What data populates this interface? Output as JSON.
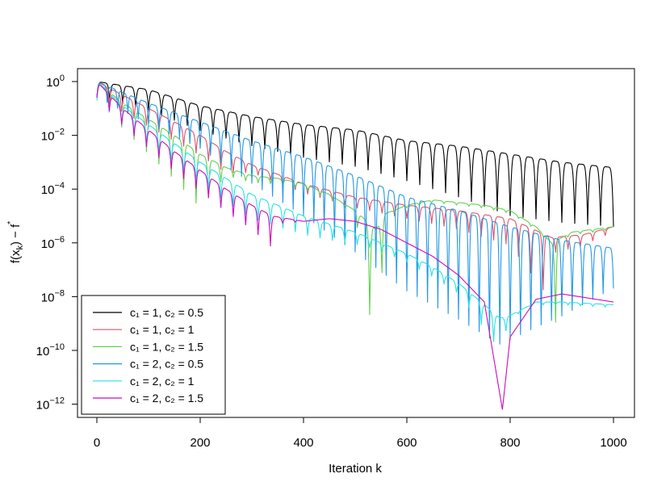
{
  "chart_data": {
    "type": "line",
    "title": "",
    "xlabel": "Iteration  k",
    "ylabel": "f(xₖ) − f*",
    "xlim": [
      0,
      1000
    ],
    "ylim_log10": [
      -12.3,
      0.5
    ],
    "y_scale": "log10",
    "x_ticks": [
      0,
      200,
      400,
      600,
      800,
      1000
    ],
    "y_ticks": [
      {
        "exp": 0,
        "label": "10^0"
      },
      {
        "exp": -2,
        "label": "10^-2"
      },
      {
        "exp": -4,
        "label": "10^-4"
      },
      {
        "exp": -6,
        "label": "10^-6"
      },
      {
        "exp": -8,
        "label": "10^-8"
      },
      {
        "exp": -10,
        "label": "10^-10"
      },
      {
        "exp": -12,
        "label": "10^-12"
      }
    ],
    "legend_position": "bottom-left",
    "series": [
      {
        "name": "c₁ = 1, c₂ = 0.5",
        "color": "#000000",
        "envelope": [
          [
            0,
            0
          ],
          [
            100,
            -0.3
          ],
          [
            200,
            -0.9
          ],
          [
            300,
            -1.3
          ],
          [
            400,
            -1.6
          ],
          [
            500,
            -1.8
          ],
          [
            600,
            -2.2
          ],
          [
            700,
            -2.4
          ],
          [
            800,
            -2.7
          ],
          [
            900,
            -3.0
          ],
          [
            1000,
            -3.2
          ]
        ],
        "oscillation_period": 25,
        "dip_depth": [
          [
            0,
            0.6
          ],
          [
            300,
            1.1
          ],
          [
            600,
            1.5
          ],
          [
            800,
            2.3
          ],
          [
            1000,
            2.2
          ]
        ]
      },
      {
        "name": "c₁ = 1, c₂ = 1",
        "color": "#df536b",
        "envelope": [
          [
            0,
            0
          ],
          [
            50,
            -0.5
          ],
          [
            100,
            -1.0
          ],
          [
            150,
            -1.5
          ],
          [
            200,
            -2.0
          ],
          [
            250,
            -2.6
          ],
          [
            300,
            -3.1
          ],
          [
            400,
            -3.8
          ],
          [
            500,
            -4.3
          ],
          [
            600,
            -4.6
          ],
          [
            700,
            -4.8
          ],
          [
            800,
            -5.1
          ],
          [
            880,
            -5.8
          ],
          [
            940,
            -5.7
          ],
          [
            1000,
            -5.4
          ]
        ],
        "oscillation_period": 24,
        "dip_depth": [
          [
            0,
            0.6
          ],
          [
            250,
            0.8
          ],
          [
            300,
            0.3
          ],
          [
            500,
            0.4
          ],
          [
            600,
            0.5
          ],
          [
            700,
            0.7
          ],
          [
            800,
            1.0
          ],
          [
            870,
            2.2
          ],
          [
            880,
            0.6
          ],
          [
            1000,
            0.2
          ]
        ]
      },
      {
        "name": "c₁ = 1, c₂ = 1.5",
        "color": "#61d04f",
        "envelope": [
          [
            0,
            0
          ],
          [
            50,
            -0.8
          ],
          [
            100,
            -1.4
          ],
          [
            150,
            -2.0
          ],
          [
            200,
            -2.7
          ],
          [
            250,
            -3.2
          ],
          [
            300,
            -3.5
          ],
          [
            350,
            -3.6
          ],
          [
            400,
            -3.8
          ],
          [
            450,
            -4.2
          ],
          [
            500,
            -4.8
          ],
          [
            540,
            -5.5
          ],
          [
            560,
            -4.9
          ],
          [
            600,
            -4.6
          ],
          [
            650,
            -4.4
          ],
          [
            700,
            -4.5
          ],
          [
            750,
            -4.6
          ],
          [
            800,
            -4.8
          ],
          [
            850,
            -5.4
          ],
          [
            880,
            -6.0
          ],
          [
            920,
            -5.6
          ],
          [
            1000,
            -5.4
          ]
        ],
        "oscillation_period": 24,
        "dip_depth": [
          [
            0,
            0.6
          ],
          [
            200,
            2.0
          ],
          [
            250,
            0.3
          ],
          [
            500,
            0.1
          ],
          [
            540,
            4.8
          ],
          [
            560,
            0.1
          ],
          [
            870,
            0.1
          ],
          [
            880,
            5.0
          ],
          [
            900,
            0.1
          ]
        ]
      },
      {
        "name": "c₁ = 2, c₂ = 0.5",
        "color": "#2297e6",
        "envelope": [
          [
            0,
            0
          ],
          [
            100,
            -0.8
          ],
          [
            200,
            -1.5
          ],
          [
            300,
            -2.2
          ],
          [
            400,
            -2.8
          ],
          [
            500,
            -3.5
          ],
          [
            600,
            -4.3
          ],
          [
            700,
            -4.8
          ],
          [
            800,
            -5.4
          ],
          [
            900,
            -5.9
          ],
          [
            1000,
            -6.2
          ]
        ],
        "oscillation_period": 20,
        "dip_depth": [
          [
            0,
            0.6
          ],
          [
            200,
            1.0
          ],
          [
            400,
            2.2
          ],
          [
            600,
            3.5
          ],
          [
            780,
            4.5
          ],
          [
            850,
            3.5
          ],
          [
            1000,
            1.5
          ]
        ]
      },
      {
        "name": "c₁ = 2, c₂ = 1",
        "color": "#28e2e5",
        "envelope": [
          [
            0,
            0
          ],
          [
            50,
            -0.9
          ],
          [
            100,
            -1.6
          ],
          [
            150,
            -2.3
          ],
          [
            200,
            -3.0
          ],
          [
            250,
            -3.6
          ],
          [
            300,
            -4.2
          ],
          [
            350,
            -4.6
          ],
          [
            400,
            -5.0
          ],
          [
            450,
            -5.3
          ],
          [
            500,
            -5.6
          ],
          [
            550,
            -6.0
          ],
          [
            600,
            -6.4
          ],
          [
            650,
            -6.9
          ],
          [
            700,
            -7.5
          ],
          [
            750,
            -8.3
          ],
          [
            780,
            -8.8
          ],
          [
            800,
            -8.7
          ],
          [
            850,
            -8.2
          ],
          [
            900,
            -8.2
          ],
          [
            1000,
            -8.3
          ]
        ],
        "oscillation_period": 24,
        "dip_depth": [
          [
            0,
            0.7
          ],
          [
            300,
            0.9
          ],
          [
            450,
            0.6
          ],
          [
            550,
            0.3
          ],
          [
            700,
            0.4
          ],
          [
            780,
            1.2
          ],
          [
            800,
            0.1
          ],
          [
            1000,
            0.1
          ]
        ]
      },
      {
        "name": "c₁ = 2, c₂ = 1.5",
        "color": "#cd0bbc",
        "envelope": [
          [
            0,
            0
          ],
          [
            50,
            -1.0
          ],
          [
            100,
            -1.8
          ],
          [
            150,
            -2.6
          ],
          [
            200,
            -3.3
          ],
          [
            250,
            -4.0
          ],
          [
            300,
            -4.6
          ],
          [
            340,
            -5.0
          ],
          [
            400,
            -5.2
          ],
          [
            450,
            -5.1
          ],
          [
            500,
            -5.2
          ],
          [
            550,
            -5.5
          ],
          [
            600,
            -6.0
          ],
          [
            650,
            -6.5
          ],
          [
            700,
            -7.2
          ],
          [
            750,
            -8.2
          ],
          [
            785,
            -12.2
          ],
          [
            800,
            -9.5
          ],
          [
            850,
            -8.1
          ],
          [
            900,
            -7.9
          ],
          [
            1000,
            -8.2
          ]
        ],
        "oscillation_period": 24,
        "dip_depth": [
          [
            0,
            0.6
          ],
          [
            300,
            0.9
          ],
          [
            340,
            1.2
          ],
          [
            360,
            0.2
          ],
          [
            400,
            0.0
          ],
          [
            1000,
            0.0
          ]
        ]
      }
    ]
  }
}
